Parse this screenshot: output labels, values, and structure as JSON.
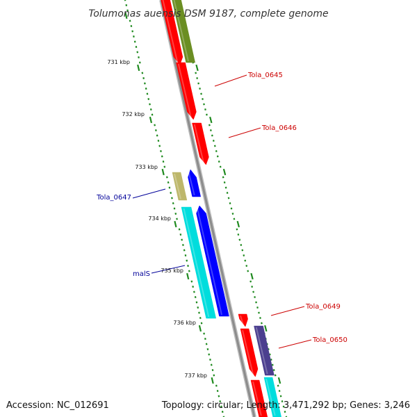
{
  "title": "Tolumonas auensis DSM 9187, complete genome",
  "footer": {
    "accession": "Accession: NC_012691",
    "summary": "Topology: circular; Length: 3,471,292 bp; Genes: 3,246"
  },
  "colors": {
    "backbone": "#8c8c8c",
    "ticks": "#1f8a1f",
    "red": "#ff0000",
    "olive": "#6b8e23",
    "khaki": "#bdb76b",
    "blue": "#0000ff",
    "cyan": "#00dddd",
    "slate": "#4b3f8f",
    "label_red": "#cc0000",
    "label_blue": "#000099"
  },
  "scale": {
    "ticks": [
      "731 kbp",
      "732 kbp",
      "733 kbp",
      "734 kbp",
      "735 kbp",
      "736 kbp",
      "737 kbp"
    ]
  },
  "gene_labels": [
    {
      "name": "Tola_0645",
      "color": "label_red"
    },
    {
      "name": "Tola_0646",
      "color": "label_red"
    },
    {
      "name": "Tola_0647",
      "color": "label_blue"
    },
    {
      "name": "malS",
      "color": "label_blue"
    },
    {
      "name": "Tola_0649",
      "color": "label_red"
    },
    {
      "name": "Tola_0650",
      "color": "label_red"
    }
  ],
  "features": [
    {
      "name": "feature-red-top",
      "color": "red"
    },
    {
      "name": "feature-olive-top",
      "color": "olive"
    },
    {
      "name": "feature-tola-0645",
      "color": "red"
    },
    {
      "name": "feature-tola-0646",
      "color": "red"
    },
    {
      "name": "feature-tola-0647",
      "color": "khaki"
    },
    {
      "name": "feature-blue-small",
      "color": "blue"
    },
    {
      "name": "feature-mals",
      "color": "cyan"
    },
    {
      "name": "feature-blue-long",
      "color": "blue"
    },
    {
      "name": "feature-tola-0649",
      "color": "red"
    },
    {
      "name": "feature-red-lower",
      "color": "red"
    },
    {
      "name": "feature-tola-0650",
      "color": "slate"
    },
    {
      "name": "feature-red-bottom",
      "color": "red"
    },
    {
      "name": "feature-cyan-bottom",
      "color": "cyan"
    }
  ]
}
